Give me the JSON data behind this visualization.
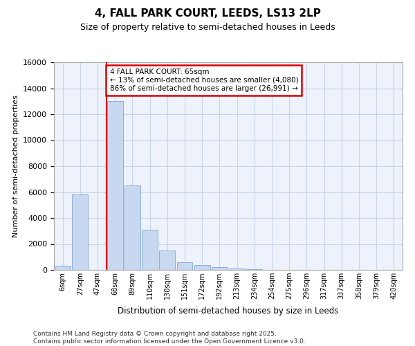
{
  "title1": "4, FALL PARK COURT, LEEDS, LS13 2LP",
  "title2": "Size of property relative to semi-detached houses in Leeds",
  "xlabel": "Distribution of semi-detached houses by size in Leeds",
  "ylabel": "Number of semi-detached properties",
  "footnote1": "Contains HM Land Registry data © Crown copyright and database right 2025.",
  "footnote2": "Contains public sector information licensed under the Open Government Licence v3.0.",
  "annotation_title": "4 FALL PARK COURT: 65sqm",
  "annotation_line1": "← 13% of semi-detached houses are smaller (4,080)",
  "annotation_line2": "86% of semi-detached houses are larger (26,991) →",
  "bar_labels": [
    "6sqm",
    "27sqm",
    "47sqm",
    "68sqm",
    "89sqm",
    "110sqm",
    "130sqm",
    "151sqm",
    "172sqm",
    "192sqm",
    "213sqm",
    "234sqm",
    "254sqm",
    "275sqm",
    "296sqm",
    "317sqm",
    "337sqm",
    "358sqm",
    "379sqm",
    "420sqm"
  ],
  "bar_values": [
    300,
    5800,
    0,
    13000,
    6500,
    3100,
    1500,
    600,
    350,
    200,
    100,
    50,
    0,
    0,
    0,
    0,
    0,
    0,
    0,
    0
  ],
  "bar_color": "#c8d8f0",
  "bar_edge_color": "#8ab0d8",
  "grid_color": "#c8d4e8",
  "vline_color": "#dd0000",
  "annotation_box_edgecolor": "#dd0000",
  "bg_color": "#eef2fa",
  "ylim_max": 16000,
  "yticks": [
    0,
    2000,
    4000,
    6000,
    8000,
    10000,
    12000,
    14000,
    16000
  ],
  "vline_position": 2.5
}
